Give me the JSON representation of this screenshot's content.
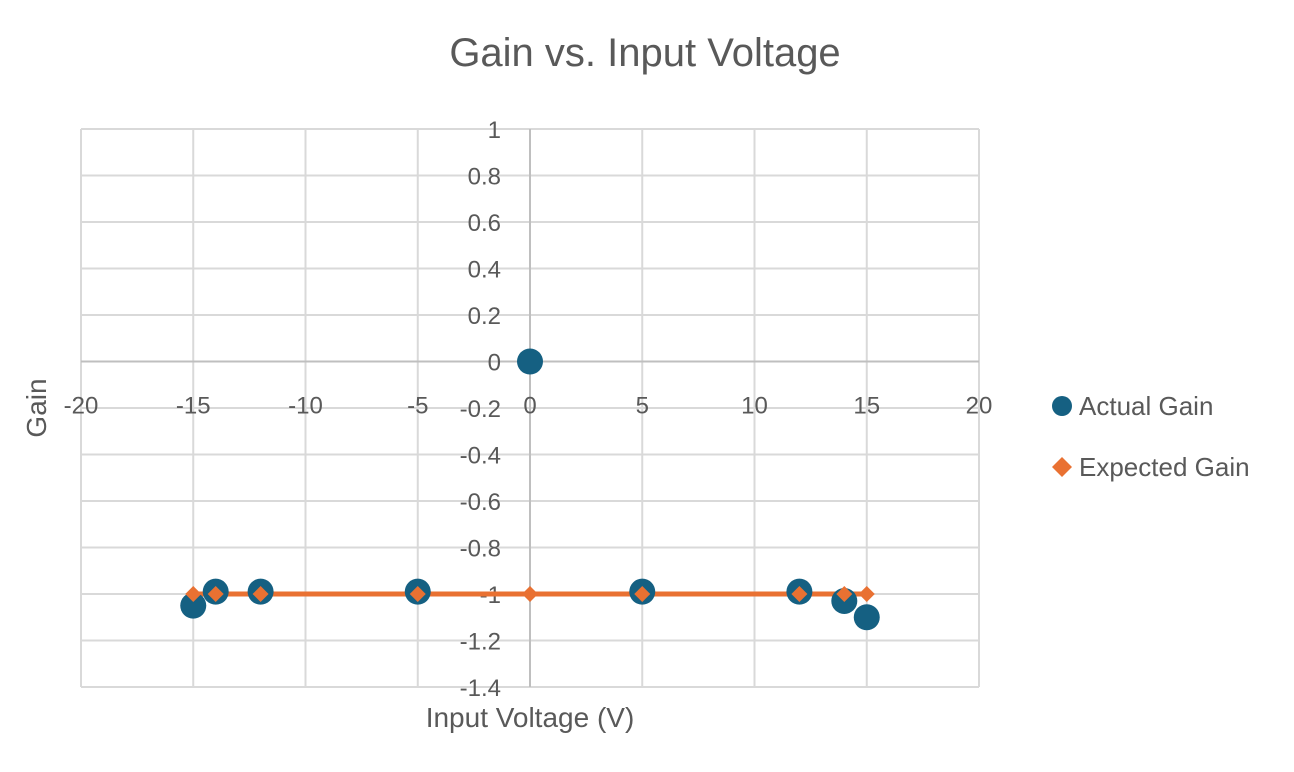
{
  "chart_data": {
    "type": "scatter",
    "title": "Gain vs. Input Voltage",
    "xlabel": "Input Voltage (V)",
    "ylabel": "Gain",
    "xlim": [
      -20,
      20
    ],
    "ylim": [
      -1.4,
      1
    ],
    "x_ticks": [
      -20,
      -15,
      -10,
      -5,
      0,
      5,
      10,
      15,
      20
    ],
    "y_ticks": [
      1,
      0.8,
      0.6,
      0.4,
      0.2,
      0,
      -0.2,
      -0.4,
      -0.6,
      -0.8,
      -1,
      -1.2,
      -1.4
    ],
    "grid": true,
    "legend_position": "right",
    "series": [
      {
        "name": "Actual Gain",
        "color": "#156082",
        "marker": "circle",
        "line": false,
        "x": [
          -15,
          -14,
          -12,
          -5,
          0,
          5,
          12,
          14,
          15
        ],
        "y": [
          -1.05,
          -0.99,
          -0.99,
          -0.99,
          0,
          -0.99,
          -0.99,
          -1.03,
          -1.1
        ]
      },
      {
        "name": "Expected Gain",
        "color": "#E97132",
        "marker": "diamond",
        "line": true,
        "x": [
          -15,
          -14,
          -12,
          -5,
          0,
          5,
          12,
          14,
          15
        ],
        "y": [
          -1,
          -1,
          -1,
          -1,
          -1,
          -1,
          -1,
          -1,
          -1
        ]
      }
    ]
  }
}
